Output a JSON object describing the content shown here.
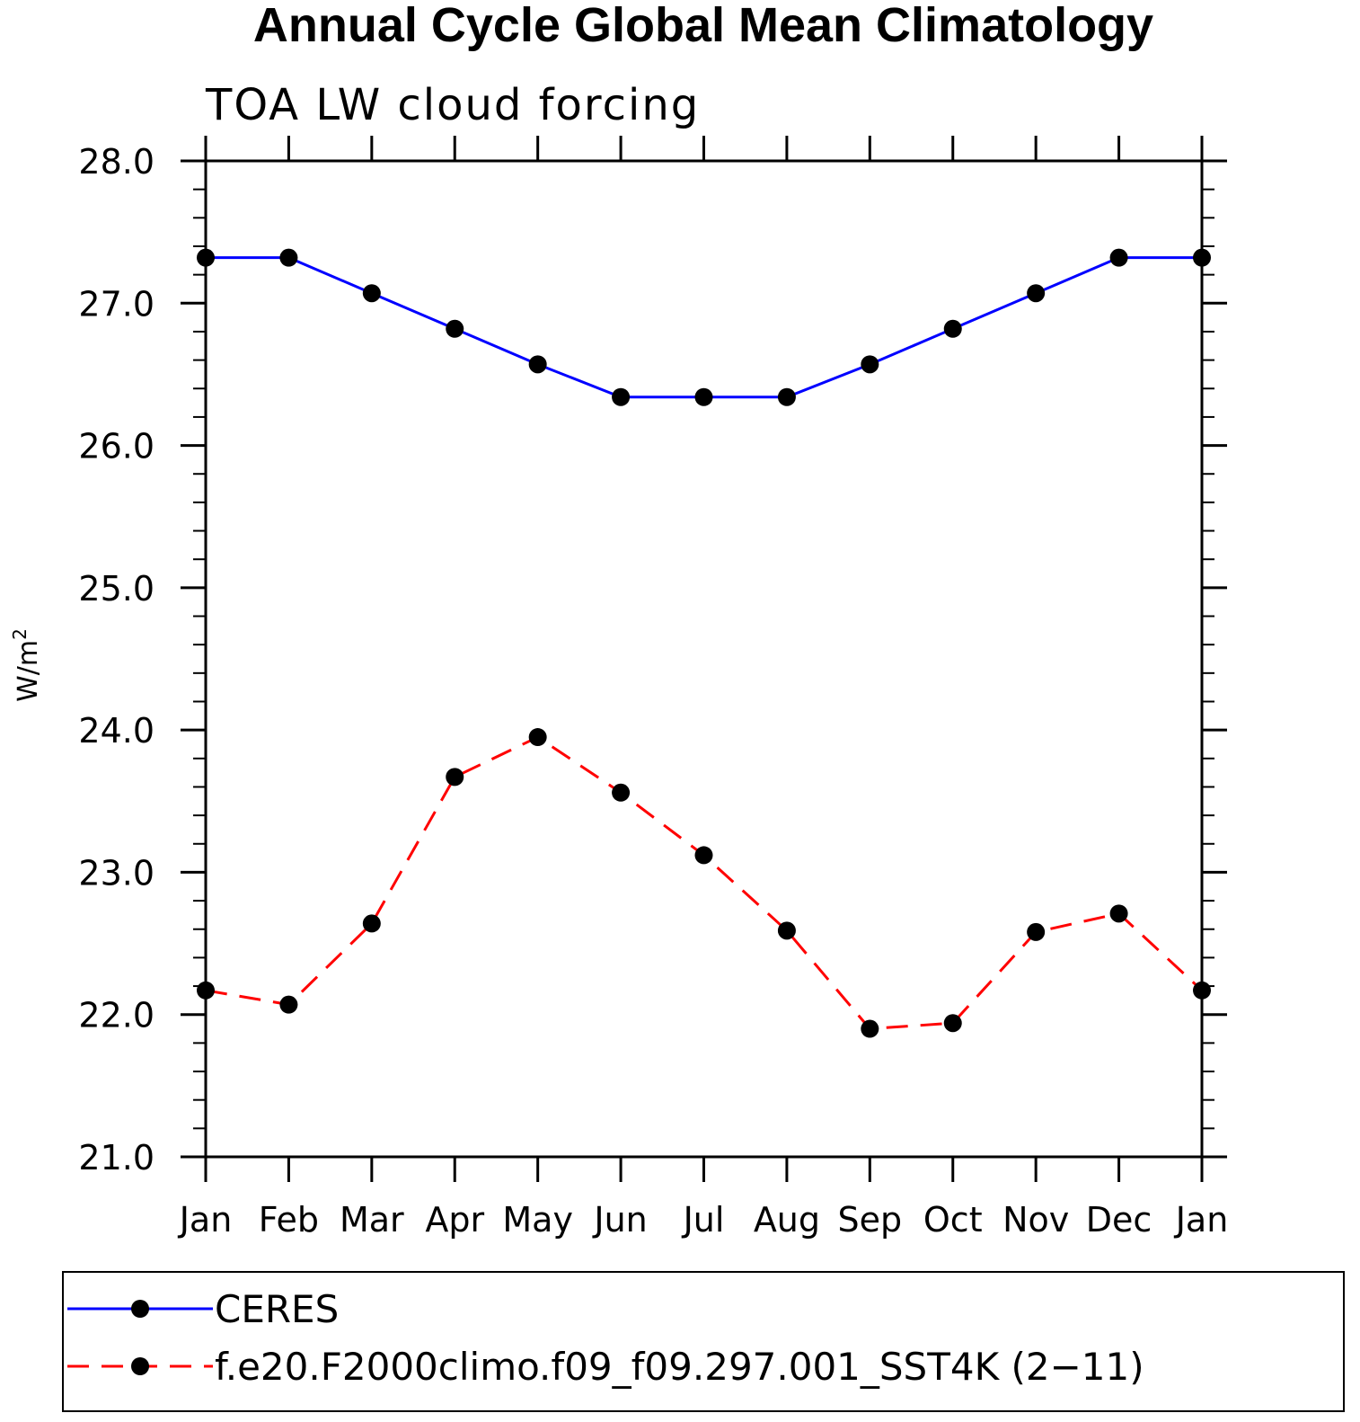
{
  "chart_data": {
    "type": "line",
    "title": "Annual Cycle Global Mean Climatology",
    "subtitle": "TOA LW cloud forcing",
    "xlabel": "",
    "ylabel": "W/m",
    "ylabel_superscript": "2",
    "categories": [
      "Jan",
      "Feb",
      "Mar",
      "Apr",
      "May",
      "Jun",
      "Jul",
      "Aug",
      "Sep",
      "Oct",
      "Nov",
      "Dec",
      "Jan"
    ],
    "ylim": [
      21.0,
      28.0
    ],
    "yticks": [
      "21.0",
      "22.0",
      "23.0",
      "24.0",
      "25.0",
      "26.0",
      "27.0",
      "28.0"
    ],
    "grid": false,
    "legend_position": "bottom",
    "series": [
      {
        "name": "CERES",
        "color": "#0000ff",
        "line_style": "solid",
        "marker": "filled-circle",
        "marker_color": "#000000",
        "values": [
          27.32,
          27.32,
          27.07,
          26.82,
          26.57,
          26.34,
          26.34,
          26.34,
          26.57,
          26.82,
          27.07,
          27.32,
          27.32
        ]
      },
      {
        "name": "f.e20.F2000climo.f09_f09.297.001_SST4K (2−11)",
        "color": "#ff0000",
        "line_style": "dashed",
        "marker": "filled-circle",
        "marker_color": "#000000",
        "values": [
          22.17,
          22.07,
          22.64,
          23.67,
          23.95,
          23.56,
          23.12,
          22.59,
          21.9,
          21.94,
          22.58,
          22.71,
          22.17
        ]
      }
    ]
  }
}
